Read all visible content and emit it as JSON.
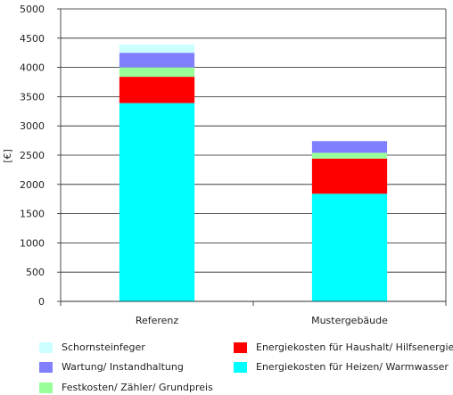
{
  "chart_data": {
    "type": "bar",
    "stacked": true,
    "categories": [
      "Referenz",
      "Mustergebäude"
    ],
    "series": [
      {
        "name": "Energiekosten für Heizen/ Warmwasser",
        "color": "#00ffff",
        "values": [
          3390,
          1840
        ]
      },
      {
        "name": "Energiekosten für Haushalt/ Hilfsenergie",
        "color": "#ff0000",
        "values": [
          450,
          600
        ]
      },
      {
        "name": "Festkosten/ Zähler/ Grundpreis",
        "color": "#99ff99",
        "values": [
          160,
          100
        ]
      },
      {
        "name": "Wartung/ Instandhaltung",
        "color": "#8080ff",
        "values": [
          250,
          200
        ]
      },
      {
        "name": "Schornsteinfeger",
        "color": "#ccffff",
        "values": [
          140,
          0
        ]
      }
    ],
    "xlabel": "",
    "ylabel": "[€]",
    "ylim": [
      0,
      5000
    ],
    "yticks": [
      "0",
      "500",
      "1000",
      "1500",
      "2000",
      "2500",
      "3000",
      "3500",
      "4000",
      "4500",
      "5000"
    ],
    "grid": true,
    "legend_position": "bottom",
    "legend_order": [
      "Schornsteinfeger",
      "Energiekosten für Haushalt/ Hilfsenergie",
      "Wartung/ Instandhaltung",
      "Energiekosten für Heizen/ Warmwasser",
      "Festkosten/ Zähler/ Grundpreis"
    ]
  }
}
